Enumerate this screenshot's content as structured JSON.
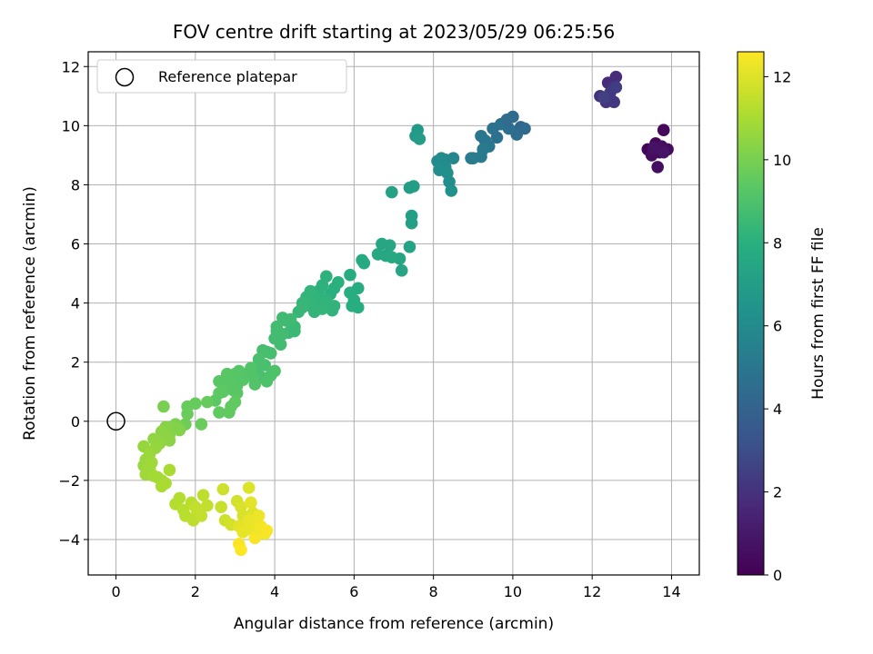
{
  "chart_data": {
    "type": "scatter",
    "title": "FOV centre drift starting at 2023/05/29 06:25:56",
    "xlabel": "Angular distance from reference (arcmin)",
    "ylabel": "Rotation from reference (arcmin)",
    "xlim": [
      -0.7,
      14.7
    ],
    "ylim": [
      -5.2,
      12.5
    ],
    "xticks": [
      0,
      2,
      4,
      6,
      8,
      10,
      12,
      14
    ],
    "yticks": [
      -4,
      -2,
      0,
      2,
      4,
      6,
      8,
      10,
      12
    ],
    "grid": true,
    "legend": {
      "position": "top-left",
      "entries": [
        "Reference platepar"
      ]
    },
    "reference_point": {
      "x": 0,
      "y": 0,
      "label": "Reference platepar"
    },
    "colorbar": {
      "label": "Hours from first FF file",
      "range": [
        0,
        12.6
      ],
      "ticks": [
        0,
        2,
        4,
        6,
        8,
        10,
        12
      ],
      "colormap": "viridis"
    },
    "points": [
      {
        "x": 13.4,
        "y": 9.2,
        "t": 0.1
      },
      {
        "x": 13.6,
        "y": 9.4,
        "t": 0.2
      },
      {
        "x": 13.8,
        "y": 9.85,
        "t": 0.3
      },
      {
        "x": 13.7,
        "y": 9.1,
        "t": 0.3
      },
      {
        "x": 13.9,
        "y": 9.2,
        "t": 0.4
      },
      {
        "x": 13.5,
        "y": 9.0,
        "t": 0.5
      },
      {
        "x": 13.65,
        "y": 8.6,
        "t": 0.6
      },
      {
        "x": 13.75,
        "y": 9.3,
        "t": 0.6
      },
      {
        "x": 13.55,
        "y": 9.25,
        "t": 0.7
      },
      {
        "x": 13.8,
        "y": 9.1,
        "t": 0.8
      },
      {
        "x": 12.4,
        "y": 11.45,
        "t": 1.7
      },
      {
        "x": 12.6,
        "y": 11.65,
        "t": 1.8
      },
      {
        "x": 12.5,
        "y": 11.3,
        "t": 1.9
      },
      {
        "x": 12.2,
        "y": 11.0,
        "t": 2.0
      },
      {
        "x": 12.35,
        "y": 10.8,
        "t": 2.1
      },
      {
        "x": 12.55,
        "y": 10.8,
        "t": 2.2
      },
      {
        "x": 12.45,
        "y": 11.1,
        "t": 2.3
      },
      {
        "x": 12.6,
        "y": 11.3,
        "t": 2.4
      },
      {
        "x": 12.3,
        "y": 10.95,
        "t": 2.5
      },
      {
        "x": 10.2,
        "y": 9.95,
        "t": 4.3
      },
      {
        "x": 10.0,
        "y": 10.3,
        "t": 4.4
      },
      {
        "x": 9.8,
        "y": 10.1,
        "t": 4.5
      },
      {
        "x": 10.1,
        "y": 9.7,
        "t": 4.5
      },
      {
        "x": 9.9,
        "y": 9.9,
        "t": 4.6
      },
      {
        "x": 9.6,
        "y": 9.6,
        "t": 4.7
      },
      {
        "x": 9.5,
        "y": 9.9,
        "t": 4.8
      },
      {
        "x": 9.7,
        "y": 10.05,
        "t": 4.8
      },
      {
        "x": 9.3,
        "y": 9.5,
        "t": 4.9
      },
      {
        "x": 9.2,
        "y": 9.65,
        "t": 5.0
      },
      {
        "x": 9.4,
        "y": 9.3,
        "t": 5.0
      },
      {
        "x": 9.0,
        "y": 8.9,
        "t": 5.1
      },
      {
        "x": 9.2,
        "y": 8.95,
        "t": 5.2
      },
      {
        "x": 9.25,
        "y": 9.2,
        "t": 5.2
      },
      {
        "x": 8.95,
        "y": 8.9,
        "t": 5.3
      },
      {
        "x": 10.3,
        "y": 9.9,
        "t": 4.4
      },
      {
        "x": 9.85,
        "y": 10.2,
        "t": 4.5
      },
      {
        "x": 8.5,
        "y": 8.9,
        "t": 5.8
      },
      {
        "x": 8.3,
        "y": 8.85,
        "t": 5.9
      },
      {
        "x": 8.2,
        "y": 8.9,
        "t": 6.0
      },
      {
        "x": 8.1,
        "y": 8.8,
        "t": 6.0
      },
      {
        "x": 8.3,
        "y": 8.6,
        "t": 6.1
      },
      {
        "x": 8.15,
        "y": 8.5,
        "t": 6.1
      },
      {
        "x": 8.4,
        "y": 8.1,
        "t": 6.2
      },
      {
        "x": 8.45,
        "y": 7.8,
        "t": 6.3
      },
      {
        "x": 8.35,
        "y": 8.4,
        "t": 6.2
      },
      {
        "x": 7.6,
        "y": 9.85,
        "t": 6.8
      },
      {
        "x": 7.55,
        "y": 9.65,
        "t": 6.8
      },
      {
        "x": 7.65,
        "y": 9.55,
        "t": 6.9
      },
      {
        "x": 7.5,
        "y": 7.95,
        "t": 7.0
      },
      {
        "x": 7.4,
        "y": 7.9,
        "t": 7.0
      },
      {
        "x": 7.45,
        "y": 6.95,
        "t": 7.1
      },
      {
        "x": 7.45,
        "y": 6.7,
        "t": 7.1
      },
      {
        "x": 6.95,
        "y": 7.75,
        "t": 7.2
      },
      {
        "x": 7.4,
        "y": 5.9,
        "t": 7.3
      },
      {
        "x": 7.15,
        "y": 5.5,
        "t": 7.4
      },
      {
        "x": 7.2,
        "y": 5.1,
        "t": 7.4
      },
      {
        "x": 6.9,
        "y": 5.95,
        "t": 7.5
      },
      {
        "x": 6.7,
        "y": 6.0,
        "t": 7.5
      },
      {
        "x": 6.8,
        "y": 5.6,
        "t": 7.5
      },
      {
        "x": 6.6,
        "y": 5.65,
        "t": 7.6
      },
      {
        "x": 6.95,
        "y": 5.55,
        "t": 7.6
      },
      {
        "x": 6.2,
        "y": 5.45,
        "t": 7.7
      },
      {
        "x": 6.25,
        "y": 5.35,
        "t": 7.7
      },
      {
        "x": 5.9,
        "y": 4.95,
        "t": 7.8
      },
      {
        "x": 6.1,
        "y": 4.5,
        "t": 7.8
      },
      {
        "x": 5.9,
        "y": 4.35,
        "t": 7.9
      },
      {
        "x": 5.95,
        "y": 3.9,
        "t": 7.9
      },
      {
        "x": 6.0,
        "y": 4.1,
        "t": 7.9
      },
      {
        "x": 6.1,
        "y": 3.85,
        "t": 7.9
      },
      {
        "x": 5.6,
        "y": 4.7,
        "t": 8.0
      },
      {
        "x": 5.5,
        "y": 4.5,
        "t": 8.0
      },
      {
        "x": 5.4,
        "y": 4.3,
        "t": 8.0
      },
      {
        "x": 5.3,
        "y": 4.9,
        "t": 8.1
      },
      {
        "x": 5.2,
        "y": 4.6,
        "t": 8.1
      },
      {
        "x": 5.1,
        "y": 4.4,
        "t": 8.1
      },
      {
        "x": 5.0,
        "y": 4.2,
        "t": 8.2
      },
      {
        "x": 5.15,
        "y": 4.05,
        "t": 8.2
      },
      {
        "x": 5.3,
        "y": 4.1,
        "t": 8.2
      },
      {
        "x": 5.5,
        "y": 3.9,
        "t": 8.2
      },
      {
        "x": 5.45,
        "y": 3.75,
        "t": 8.2
      },
      {
        "x": 4.9,
        "y": 4.4,
        "t": 8.3
      },
      {
        "x": 4.8,
        "y": 4.2,
        "t": 8.3
      },
      {
        "x": 5.2,
        "y": 3.8,
        "t": 8.3
      },
      {
        "x": 4.9,
        "y": 3.9,
        "t": 8.3
      },
      {
        "x": 5.0,
        "y": 3.7,
        "t": 8.3
      },
      {
        "x": 4.7,
        "y": 4.0,
        "t": 8.4
      },
      {
        "x": 4.6,
        "y": 3.7,
        "t": 8.4
      },
      {
        "x": 4.7,
        "y": 3.85,
        "t": 8.4
      },
      {
        "x": 4.5,
        "y": 3.2,
        "t": 8.5
      },
      {
        "x": 4.35,
        "y": 3.0,
        "t": 8.5
      },
      {
        "x": 4.5,
        "y": 3.05,
        "t": 8.5
      },
      {
        "x": 4.3,
        "y": 3.4,
        "t": 8.6
      },
      {
        "x": 4.2,
        "y": 3.5,
        "t": 8.6
      },
      {
        "x": 4.4,
        "y": 3.45,
        "t": 8.6
      },
      {
        "x": 4.05,
        "y": 3.05,
        "t": 8.7
      },
      {
        "x": 4.0,
        "y": 2.8,
        "t": 8.7
      },
      {
        "x": 4.15,
        "y": 2.6,
        "t": 8.7
      },
      {
        "x": 4.2,
        "y": 2.95,
        "t": 8.7
      },
      {
        "x": 4.05,
        "y": 3.2,
        "t": 8.7
      },
      {
        "x": 3.9,
        "y": 2.3,
        "t": 8.8
      },
      {
        "x": 3.8,
        "y": 2.35,
        "t": 8.8
      },
      {
        "x": 3.7,
        "y": 2.4,
        "t": 8.8
      },
      {
        "x": 3.6,
        "y": 2.1,
        "t": 8.9
      },
      {
        "x": 3.75,
        "y": 1.9,
        "t": 8.9
      },
      {
        "x": 3.55,
        "y": 1.7,
        "t": 8.9
      },
      {
        "x": 3.65,
        "y": 1.5,
        "t": 8.9
      },
      {
        "x": 3.9,
        "y": 1.55,
        "t": 9.0
      },
      {
        "x": 4.0,
        "y": 1.7,
        "t": 9.0
      },
      {
        "x": 3.8,
        "y": 1.35,
        "t": 9.0
      },
      {
        "x": 3.4,
        "y": 1.8,
        "t": 9.1
      },
      {
        "x": 3.3,
        "y": 1.6,
        "t": 9.1
      },
      {
        "x": 3.45,
        "y": 1.5,
        "t": 9.1
      },
      {
        "x": 3.5,
        "y": 1.25,
        "t": 9.1
      },
      {
        "x": 3.1,
        "y": 1.7,
        "t": 9.2
      },
      {
        "x": 3.0,
        "y": 1.6,
        "t": 9.2
      },
      {
        "x": 3.2,
        "y": 1.4,
        "t": 9.2
      },
      {
        "x": 3.05,
        "y": 1.2,
        "t": 9.2
      },
      {
        "x": 2.8,
        "y": 1.6,
        "t": 9.3
      },
      {
        "x": 2.9,
        "y": 1.3,
        "t": 9.3
      },
      {
        "x": 2.75,
        "y": 1.4,
        "t": 9.3
      },
      {
        "x": 2.6,
        "y": 1.35,
        "t": 9.3
      },
      {
        "x": 2.95,
        "y": 1.05,
        "t": 9.3
      },
      {
        "x": 3.05,
        "y": 0.95,
        "t": 9.3
      },
      {
        "x": 2.7,
        "y": 1.0,
        "t": 9.4
      },
      {
        "x": 2.5,
        "y": 0.7,
        "t": 9.4
      },
      {
        "x": 2.6,
        "y": 0.95,
        "t": 9.4
      },
      {
        "x": 2.9,
        "y": 0.5,
        "t": 9.5
      },
      {
        "x": 3.0,
        "y": 0.65,
        "t": 9.5
      },
      {
        "x": 2.85,
        "y": 0.3,
        "t": 9.5
      },
      {
        "x": 2.6,
        "y": 0.3,
        "t": 9.5
      },
      {
        "x": 2.3,
        "y": 0.65,
        "t": 9.6
      },
      {
        "x": 2.0,
        "y": 0.6,
        "t": 9.6
      },
      {
        "x": 1.8,
        "y": 0.5,
        "t": 9.6
      },
      {
        "x": 2.15,
        "y": -0.1,
        "t": 9.7
      },
      {
        "x": 1.8,
        "y": 0.25,
        "t": 9.7
      },
      {
        "x": 1.75,
        "y": -0.1,
        "t": 9.8
      },
      {
        "x": 1.2,
        "y": 0.5,
        "t": 10.0
      },
      {
        "x": 1.5,
        "y": -0.1,
        "t": 10.1
      },
      {
        "x": 1.6,
        "y": -0.3,
        "t": 10.2
      },
      {
        "x": 1.4,
        "y": -0.2,
        "t": 10.2
      },
      {
        "x": 1.25,
        "y": -0.2,
        "t": 10.3
      },
      {
        "x": 1.35,
        "y": -0.45,
        "t": 10.3
      },
      {
        "x": 1.2,
        "y": -0.5,
        "t": 10.4
      },
      {
        "x": 1.15,
        "y": -0.35,
        "t": 10.4
      },
      {
        "x": 1.35,
        "y": -0.65,
        "t": 10.4
      },
      {
        "x": 1.1,
        "y": -0.75,
        "t": 10.5
      },
      {
        "x": 0.95,
        "y": -0.6,
        "t": 10.5
      },
      {
        "x": 1.0,
        "y": -0.9,
        "t": 10.6
      },
      {
        "x": 0.7,
        "y": -0.85,
        "t": 10.6
      },
      {
        "x": 0.85,
        "y": -1.1,
        "t": 10.7
      },
      {
        "x": 0.75,
        "y": -1.3,
        "t": 10.7
      },
      {
        "x": 0.7,
        "y": -1.5,
        "t": 10.7
      },
      {
        "x": 0.9,
        "y": -1.4,
        "t": 10.8
      },
      {
        "x": 0.85,
        "y": -1.6,
        "t": 10.8
      },
      {
        "x": 0.75,
        "y": -1.8,
        "t": 10.8
      },
      {
        "x": 0.95,
        "y": -1.85,
        "t": 10.9
      },
      {
        "x": 1.05,
        "y": -1.9,
        "t": 10.9
      },
      {
        "x": 1.15,
        "y": -2.0,
        "t": 10.9
      },
      {
        "x": 1.25,
        "y": -2.1,
        "t": 11.0
      },
      {
        "x": 1.35,
        "y": -1.65,
        "t": 11.0
      },
      {
        "x": 1.15,
        "y": -2.2,
        "t": 11.0
      },
      {
        "x": 1.6,
        "y": -2.6,
        "t": 11.2
      },
      {
        "x": 1.5,
        "y": -2.8,
        "t": 11.2
      },
      {
        "x": 1.7,
        "y": -3.0,
        "t": 11.3
      },
      {
        "x": 1.9,
        "y": -2.75,
        "t": 11.3
      },
      {
        "x": 1.75,
        "y": -3.2,
        "t": 11.3
      },
      {
        "x": 1.95,
        "y": -3.35,
        "t": 11.4
      },
      {
        "x": 2.05,
        "y": -3.1,
        "t": 11.4
      },
      {
        "x": 2.2,
        "y": -2.5,
        "t": 11.4
      },
      {
        "x": 2.3,
        "y": -2.85,
        "t": 11.5
      },
      {
        "x": 2.0,
        "y": -2.9,
        "t": 11.5
      },
      {
        "x": 2.15,
        "y": -3.2,
        "t": 11.5
      },
      {
        "x": 2.65,
        "y": -2.9,
        "t": 11.6
      },
      {
        "x": 2.7,
        "y": -2.3,
        "t": 11.7
      },
      {
        "x": 2.75,
        "y": -3.35,
        "t": 11.7
      },
      {
        "x": 2.9,
        "y": -3.5,
        "t": 11.8
      },
      {
        "x": 3.05,
        "y": -2.7,
        "t": 11.8
      },
      {
        "x": 3.15,
        "y": -2.9,
        "t": 11.9
      },
      {
        "x": 3.2,
        "y": -3.2,
        "t": 11.9
      },
      {
        "x": 3.35,
        "y": -2.25,
        "t": 12.0
      },
      {
        "x": 3.3,
        "y": -3.4,
        "t": 12.0
      },
      {
        "x": 3.45,
        "y": -3.1,
        "t": 12.0
      },
      {
        "x": 3.4,
        "y": -2.75,
        "t": 12.1
      },
      {
        "x": 3.1,
        "y": -3.55,
        "t": 12.1
      },
      {
        "x": 3.2,
        "y": -3.75,
        "t": 12.2
      },
      {
        "x": 3.35,
        "y": -3.65,
        "t": 12.2
      },
      {
        "x": 3.5,
        "y": -3.5,
        "t": 12.3
      },
      {
        "x": 3.55,
        "y": -3.8,
        "t": 12.3
      },
      {
        "x": 3.65,
        "y": -3.55,
        "t": 12.4
      },
      {
        "x": 3.75,
        "y": -3.8,
        "t": 12.4
      },
      {
        "x": 3.8,
        "y": -3.7,
        "t": 12.5
      },
      {
        "x": 3.5,
        "y": -3.95,
        "t": 12.5
      },
      {
        "x": 3.1,
        "y": -4.15,
        "t": 12.5
      },
      {
        "x": 3.15,
        "y": -4.35,
        "t": 12.6
      },
      {
        "x": 3.35,
        "y": -3.35,
        "t": 12.2
      },
      {
        "x": 3.6,
        "y": -3.2,
        "t": 12.3
      }
    ]
  }
}
